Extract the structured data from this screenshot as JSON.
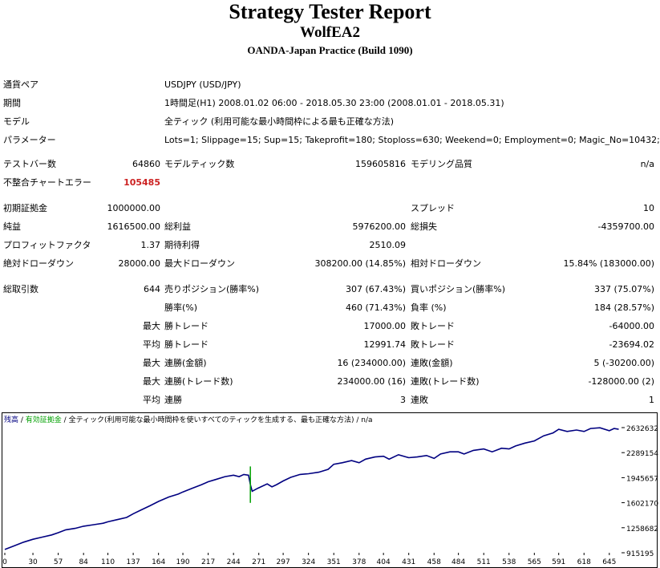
{
  "header": {
    "title": "Strategy Tester Report",
    "ea_name": "WolfEA2",
    "server": "OANDA-Japan Practice (Build 1090)"
  },
  "info": {
    "pair_label": "通貨ペア",
    "pair_value": "USDJPY (USD/JPY)",
    "period_label": "期間",
    "period_value": "1時間足(H1) 2008.01.02 06:00 - 2018.05.30 23:00 (2008.01.01 - 2018.05.31)",
    "model_label": "モデル",
    "model_value": "全ティック (利用可能な最小時間枠による最も正確な方法)",
    "params_label": "パラメーター",
    "params_value": "Lots=1; Slippage=15; Sup=15; Takeprofit=180; Stoploss=630; Weekend=0; Employment=0; Magic_No=10432;"
  },
  "stats": {
    "test_bars_label": "テストバー数",
    "test_bars_value": "64860",
    "model_ticks_label": "モデルティック数",
    "model_ticks_value": "159605816",
    "modeling_quality_label": "モデリング品質",
    "modeling_quality_value": "n/a",
    "mismatch_label": "不整合チャートエラー",
    "mismatch_value": "105485",
    "initial_deposit_label": "初期証拠金",
    "initial_deposit_value": "1000000.00",
    "spread_label": "スプレッド",
    "spread_value": "10",
    "net_profit_label": "純益",
    "net_profit_value": "1616500.00",
    "gross_profit_label": "総利益",
    "gross_profit_value": "5976200.00",
    "gross_loss_label": "総損失",
    "gross_loss_value": "-4359700.00",
    "profit_factor_label": "プロフィットファクタ",
    "profit_factor_value": "1.37",
    "expected_payoff_label": "期待利得",
    "expected_payoff_value": "2510.09",
    "abs_dd_label": "絶対ドローダウン",
    "abs_dd_value": "28000.00",
    "max_dd_label": "最大ドローダウン",
    "max_dd_value": "308200.00 (14.85%)",
    "rel_dd_label": "相対ドローダウン",
    "rel_dd_value": "15.84% (183000.00)",
    "total_trades_label": "総取引数",
    "total_trades_value": "644",
    "short_pos_label": "売りポジション(勝率%)",
    "short_pos_value": "307 (67.43%)",
    "long_pos_label": "買いポジション(勝率%)",
    "long_pos_value": "337 (75.07%)",
    "win_rate_label": "勝率(%)",
    "win_rate_value": "460 (71.43%)",
    "loss_rate_label": "負率 (%)",
    "loss_rate_value": "184 (28.57%)",
    "max_label_1": "最大",
    "largest_win_label": "勝トレード",
    "largest_win_value": "17000.00",
    "largest_loss_label": "敗トレード",
    "largest_loss_value": "-64000.00",
    "avg_label_1": "平均",
    "avg_win_label": "勝トレード",
    "avg_win_value": "12991.74",
    "avg_loss_label": "敗トレード",
    "avg_loss_value": "-23694.02",
    "max_label_2": "最大",
    "max_consec_win_money_label": "連勝(金額)",
    "max_consec_win_money_value": "16 (234000.00)",
    "max_consec_loss_money_label": "連敗(金額)",
    "max_consec_loss_money_value": "5 (-30200.00)",
    "max_label_3": "最大",
    "max_consec_win_count_label": "連勝(トレード数)",
    "max_consec_win_count_value": "234000.00 (16)",
    "max_consec_loss_count_label": "連敗(トレード数)",
    "max_consec_loss_count_value": "-128000.00 (2)",
    "avg_label_2": "平均",
    "avg_consec_win_label": "連勝",
    "avg_consec_win_value": "3",
    "avg_consec_loss_label": "連敗",
    "avg_consec_loss_value": "1"
  },
  "chart_legend": {
    "balance": "残高",
    "sep1": " / ",
    "equity": "有効証拠金",
    "sep2": " / ",
    "model": "全ティック(利用可能な最小時間枠を使いすべてのティックを生成する、最も正確な方法)",
    "sep3": " / ",
    "quality": "n/a"
  },
  "chart_data": {
    "type": "line",
    "x_ticks": [
      "0",
      "30",
      "57",
      "84",
      "110",
      "137",
      "164",
      "190",
      "217",
      "244",
      "271",
      "297",
      "324",
      "351",
      "378",
      "404",
      "431",
      "458",
      "484",
      "511",
      "538",
      "565",
      "591",
      "618",
      "645"
    ],
    "y_ticks": [
      "2632632",
      "2289154",
      "1945657",
      "1602170",
      "1258682",
      "915195"
    ],
    "xlim": [
      0,
      658
    ],
    "ylim": [
      915195,
      2632632
    ],
    "colors": {
      "balance": "#000080",
      "equity": "#00a000"
    },
    "series": [
      {
        "name": "残高",
        "x": [
          0,
          10,
          20,
          30,
          40,
          50,
          57,
          65,
          75,
          84,
          95,
          105,
          110,
          120,
          130,
          137,
          145,
          155,
          164,
          175,
          185,
          190,
          200,
          210,
          217,
          225,
          235,
          244,
          250,
          255,
          260,
          262,
          264,
          270,
          280,
          285,
          290,
          297,
          305,
          315,
          324,
          335,
          345,
          351,
          360,
          370,
          378,
          385,
          395,
          404,
          410,
          420,
          431,
          440,
          450,
          458,
          465,
          475,
          484,
          490,
          500,
          511,
          520,
          530,
          538,
          545,
          555,
          565,
          575,
          585,
          591,
          600,
          610,
          618,
          625,
          635,
          645,
          650,
          655
        ],
        "y": [
          960000,
          1010000,
          1060000,
          1100000,
          1130000,
          1160000,
          1190000,
          1230000,
          1250000,
          1280000,
          1300000,
          1320000,
          1340000,
          1370000,
          1400000,
          1450000,
          1500000,
          1560000,
          1620000,
          1680000,
          1720000,
          1750000,
          1800000,
          1850000,
          1890000,
          1920000,
          1960000,
          1980000,
          1960000,
          1990000,
          1980000,
          1850000,
          1760000,
          1800000,
          1860000,
          1820000,
          1850000,
          1900000,
          1950000,
          1990000,
          2000000,
          2020000,
          2060000,
          2130000,
          2150000,
          2180000,
          2150000,
          2200000,
          2230000,
          2240000,
          2200000,
          2260000,
          2220000,
          2230000,
          2250000,
          2210000,
          2270000,
          2300000,
          2300000,
          2270000,
          2320000,
          2340000,
          2300000,
          2350000,
          2340000,
          2380000,
          2420000,
          2450000,
          2520000,
          2560000,
          2610000,
          2580000,
          2600000,
          2580000,
          2620000,
          2630000,
          2590000,
          2620000,
          2610000
        ]
      }
    ]
  }
}
